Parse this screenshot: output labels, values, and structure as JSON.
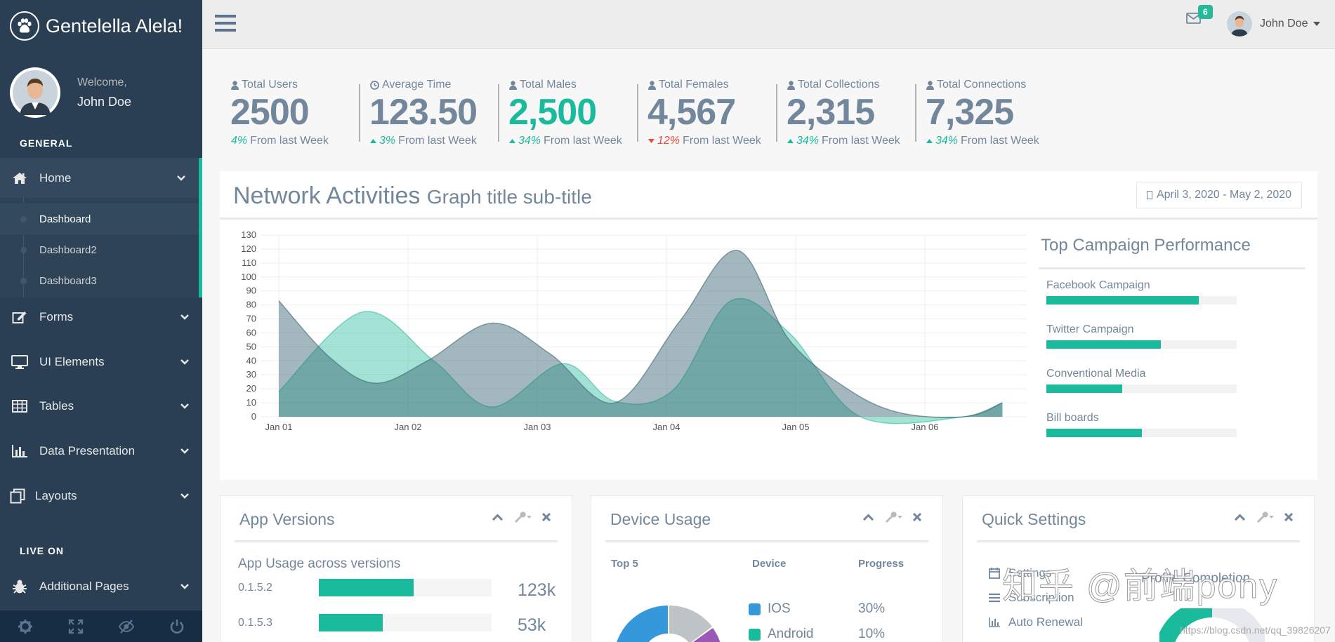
{
  "brand": {
    "name": "Gentelella Alela!"
  },
  "profile": {
    "welcome": "Welcome,",
    "name": "John Doe"
  },
  "sidebar": {
    "general_heading": "GENERAL",
    "live_heading": "LIVE ON",
    "home": "Home",
    "submenu": [
      "Dashboard",
      "Dashboard2",
      "Dashboard3"
    ],
    "forms": "Forms",
    "ui": "UI Elements",
    "tables": "Tables",
    "data_presentation": "Data Presentation",
    "layouts": "Layouts",
    "additional": "Additional Pages"
  },
  "topnav": {
    "mail_badge": "6",
    "user": "John Doe"
  },
  "tiles": [
    {
      "title": "Total Users",
      "value": "2500",
      "pct": "4%",
      "from": "From last Week",
      "trend": "none"
    },
    {
      "title": "Average Time",
      "value": "123.50",
      "pct": "3%",
      "from": "From last Week",
      "trend": "up"
    },
    {
      "title": "Total Males",
      "value": "2,500",
      "pct": "34%",
      "from": "From last Week",
      "trend": "up"
    },
    {
      "title": "Total Females",
      "value": "4,567",
      "pct": "12%",
      "from": "From last Week",
      "trend": "down"
    },
    {
      "title": "Total Collections",
      "value": "2,315",
      "pct": "34%",
      "from": "From last Week",
      "trend": "up"
    },
    {
      "title": "Total Connections",
      "value": "7,325",
      "pct": "34%",
      "from": "From last Week",
      "trend": "up"
    }
  ],
  "graph": {
    "title": "Network Activities",
    "subtitle": "Graph title sub-title",
    "daterange": "April 3, 2020 - May 2, 2020"
  },
  "chart_data": {
    "type": "area",
    "x": [
      "Jan 01",
      "Jan 02",
      "Jan 03",
      "Jan 04",
      "Jan 05",
      "Jan 06"
    ],
    "ylim": [
      0,
      130
    ],
    "yticks": [
      0,
      10,
      20,
      30,
      40,
      50,
      60,
      70,
      80,
      90,
      100,
      110,
      120,
      130
    ],
    "grid": true,
    "series": [
      {
        "color": "#96CA59",
        "points": [
          [
            0.0,
            18
          ],
          [
            0.65,
            75
          ],
          [
            1.2,
            40
          ],
          [
            1.65,
            7
          ],
          [
            2.2,
            38
          ],
          [
            2.6,
            11
          ],
          [
            3.05,
            19
          ],
          [
            3.5,
            83
          ],
          [
            3.95,
            60
          ],
          [
            4.5,
            0
          ],
          [
            5.3,
            0
          ],
          [
            5.6,
            10
          ]
        ]
      },
      {
        "color": "#73879C",
        "points": [
          [
            0.0,
            83
          ],
          [
            0.4,
            42
          ],
          [
            0.75,
            24
          ],
          [
            1.15,
            40
          ],
          [
            1.65,
            67
          ],
          [
            2.1,
            45
          ],
          [
            2.6,
            10
          ],
          [
            3.1,
            68
          ],
          [
            3.55,
            119
          ],
          [
            3.95,
            55
          ],
          [
            4.4,
            20
          ],
          [
            4.8,
            3
          ],
          [
            5.3,
            0
          ],
          [
            5.6,
            10
          ]
        ]
      }
    ]
  },
  "campaign": {
    "title": "Top Campaign Performance",
    "items": [
      {
        "label": "Facebook Campaign",
        "progress": 0.8
      },
      {
        "label": "Twitter Campaign",
        "progress": 0.6
      },
      {
        "label": "Conventional Media",
        "progress": 0.4
      },
      {
        "label": "Bill boards",
        "progress": 0.5
      }
    ]
  },
  "app_versions": {
    "title": "App Versions",
    "caption": "App Usage across versions",
    "rows": [
      {
        "version": "0.1.5.2",
        "progress": 0.55,
        "value": "123k"
      },
      {
        "version": "0.1.5.3",
        "progress": 0.37,
        "value": "53k"
      }
    ]
  },
  "device_usage": {
    "title": "Device Usage",
    "col_top": "Top 5",
    "col_device": "Device",
    "col_progress": "Progress",
    "rows": [
      {
        "device": "IOS",
        "progress": "30%",
        "color": "#3498DB"
      },
      {
        "device": "Android",
        "progress": "10%",
        "color": "#1ABB9C"
      }
    ]
  },
  "quick_settings": {
    "title": "Quick Settings",
    "items": [
      "Settings",
      "Subscription",
      "Auto Renewal"
    ],
    "profile_completion": "Profile Completion"
  },
  "watermark": "知乎 @前端pony",
  "csdn": "https://blog.csdn.net/qq_39826207"
}
